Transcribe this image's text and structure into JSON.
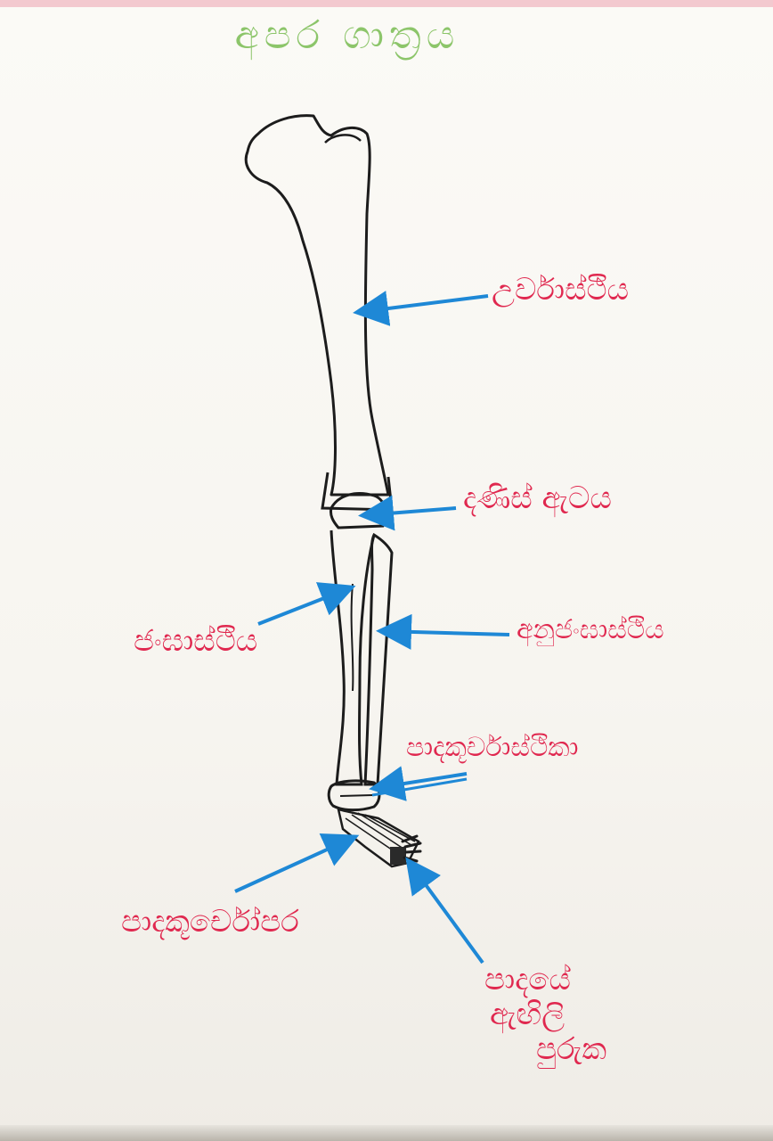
{
  "title": "අපර ගාත්‍රය",
  "colors": {
    "title": "#8cc56a",
    "labels": "#e0284f",
    "arrows": "#1e88d6",
    "bone_outline": "#1c1c1c",
    "paper": "#f7f5f0"
  },
  "labels": {
    "femur": "උර්වාස්ථිය",
    "patella": "දණිස් ඇටය",
    "tibia": "ජංඝාස්ථිය",
    "fibula": "අනුජංඝාස්ථිය",
    "tarsals": "පාදකූර්චාස්ථිකා",
    "metatarsals": "පාදකූර්චෝපර",
    "phalanges": [
      "පාදයේ",
      "ඇඟිලි",
      "පුරුක"
    ]
  }
}
